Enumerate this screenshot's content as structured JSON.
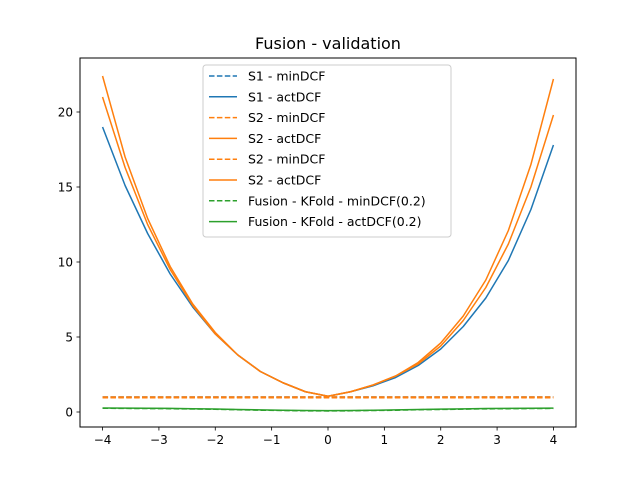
{
  "chart_data": {
    "type": "line",
    "title": "Fusion - validation",
    "xlabel": "",
    "ylabel": "",
    "xlim": [
      -4.4,
      4.4
    ],
    "ylim": [
      -1.0,
      23.6
    ],
    "xticks": [
      -4,
      -3,
      -2,
      -1,
      0,
      1,
      2,
      3,
      4
    ],
    "yticks": [
      0,
      5,
      10,
      15,
      20
    ],
    "grid": false,
    "legend_position": "upper center",
    "x": [
      -4.0,
      -3.6,
      -3.2,
      -2.8,
      -2.4,
      -2.0,
      -1.6,
      -1.2,
      -0.8,
      -0.4,
      0.0,
      0.4,
      0.8,
      1.2,
      1.6,
      2.0,
      2.4,
      2.8,
      3.2,
      3.6,
      4.0
    ],
    "series": [
      {
        "name": "S1 - minDCF",
        "color": "#1f77b4",
        "style": "dashed",
        "values": [
          1.0,
          1.0,
          1.0,
          1.0,
          1.0,
          1.0,
          1.0,
          1.0,
          1.0,
          1.0,
          1.0,
          1.0,
          1.0,
          1.0,
          1.0,
          1.0,
          1.0,
          1.0,
          1.0,
          1.0,
          1.0
        ]
      },
      {
        "name": "S1 - actDCF",
        "color": "#1f77b4",
        "style": "solid",
        "values": [
          19.0,
          15.1,
          11.9,
          9.2,
          7.0,
          5.2,
          3.8,
          2.7,
          1.95,
          1.35,
          1.05,
          1.35,
          1.75,
          2.3,
          3.1,
          4.2,
          5.7,
          7.6,
          10.1,
          13.5,
          17.8
        ]
      },
      {
        "name": "S2 - minDCF",
        "color": "#ff7f0e",
        "style": "dashed",
        "values": [
          1.0,
          1.0,
          1.0,
          1.0,
          1.0,
          1.0,
          1.0,
          1.0,
          1.0,
          1.0,
          1.0,
          1.0,
          1.0,
          1.0,
          1.0,
          1.0,
          1.0,
          1.0,
          1.0,
          1.0,
          1.0
        ]
      },
      {
        "name": "S2 - actDCF",
        "color": "#ff7f0e",
        "style": "solid",
        "values": [
          22.4,
          17.0,
          12.9,
          9.7,
          7.2,
          5.3,
          3.8,
          2.7,
          1.95,
          1.35,
          1.05,
          1.35,
          1.8,
          2.4,
          3.3,
          4.6,
          6.4,
          8.8,
          12.1,
          16.5,
          22.2
        ]
      },
      {
        "name": "S2 - minDCF",
        "color": "#ff7f0e",
        "style": "dashed",
        "values": [
          0.95,
          0.95,
          0.95,
          0.95,
          0.95,
          0.95,
          0.95,
          0.95,
          0.95,
          0.95,
          0.95,
          0.95,
          0.95,
          0.95,
          0.95,
          0.95,
          0.95,
          0.95,
          0.95,
          0.95,
          0.95
        ]
      },
      {
        "name": "S2 - actDCF",
        "color": "#ff7f0e",
        "style": "solid",
        "values": [
          21.0,
          16.3,
          12.5,
          9.5,
          7.1,
          5.2,
          3.8,
          2.7,
          1.95,
          1.35,
          1.05,
          1.35,
          1.8,
          2.4,
          3.2,
          4.4,
          6.1,
          8.3,
          11.2,
          15.0,
          19.8
        ]
      },
      {
        "name": "Fusion - KFold - minDCF(0.2)",
        "color": "#2ca02c",
        "style": "dashed",
        "values": [
          0.25,
          0.24,
          0.23,
          0.22,
          0.2,
          0.18,
          0.15,
          0.12,
          0.1,
          0.08,
          0.07,
          0.08,
          0.1,
          0.12,
          0.15,
          0.17,
          0.19,
          0.21,
          0.22,
          0.23,
          0.24
        ]
      },
      {
        "name": "Fusion - KFold - actDCF(0.2)",
        "color": "#2ca02c",
        "style": "solid",
        "values": [
          0.27,
          0.26,
          0.25,
          0.24,
          0.22,
          0.2,
          0.17,
          0.14,
          0.12,
          0.1,
          0.09,
          0.1,
          0.12,
          0.14,
          0.17,
          0.19,
          0.21,
          0.23,
          0.24,
          0.25,
          0.26
        ]
      }
    ]
  }
}
